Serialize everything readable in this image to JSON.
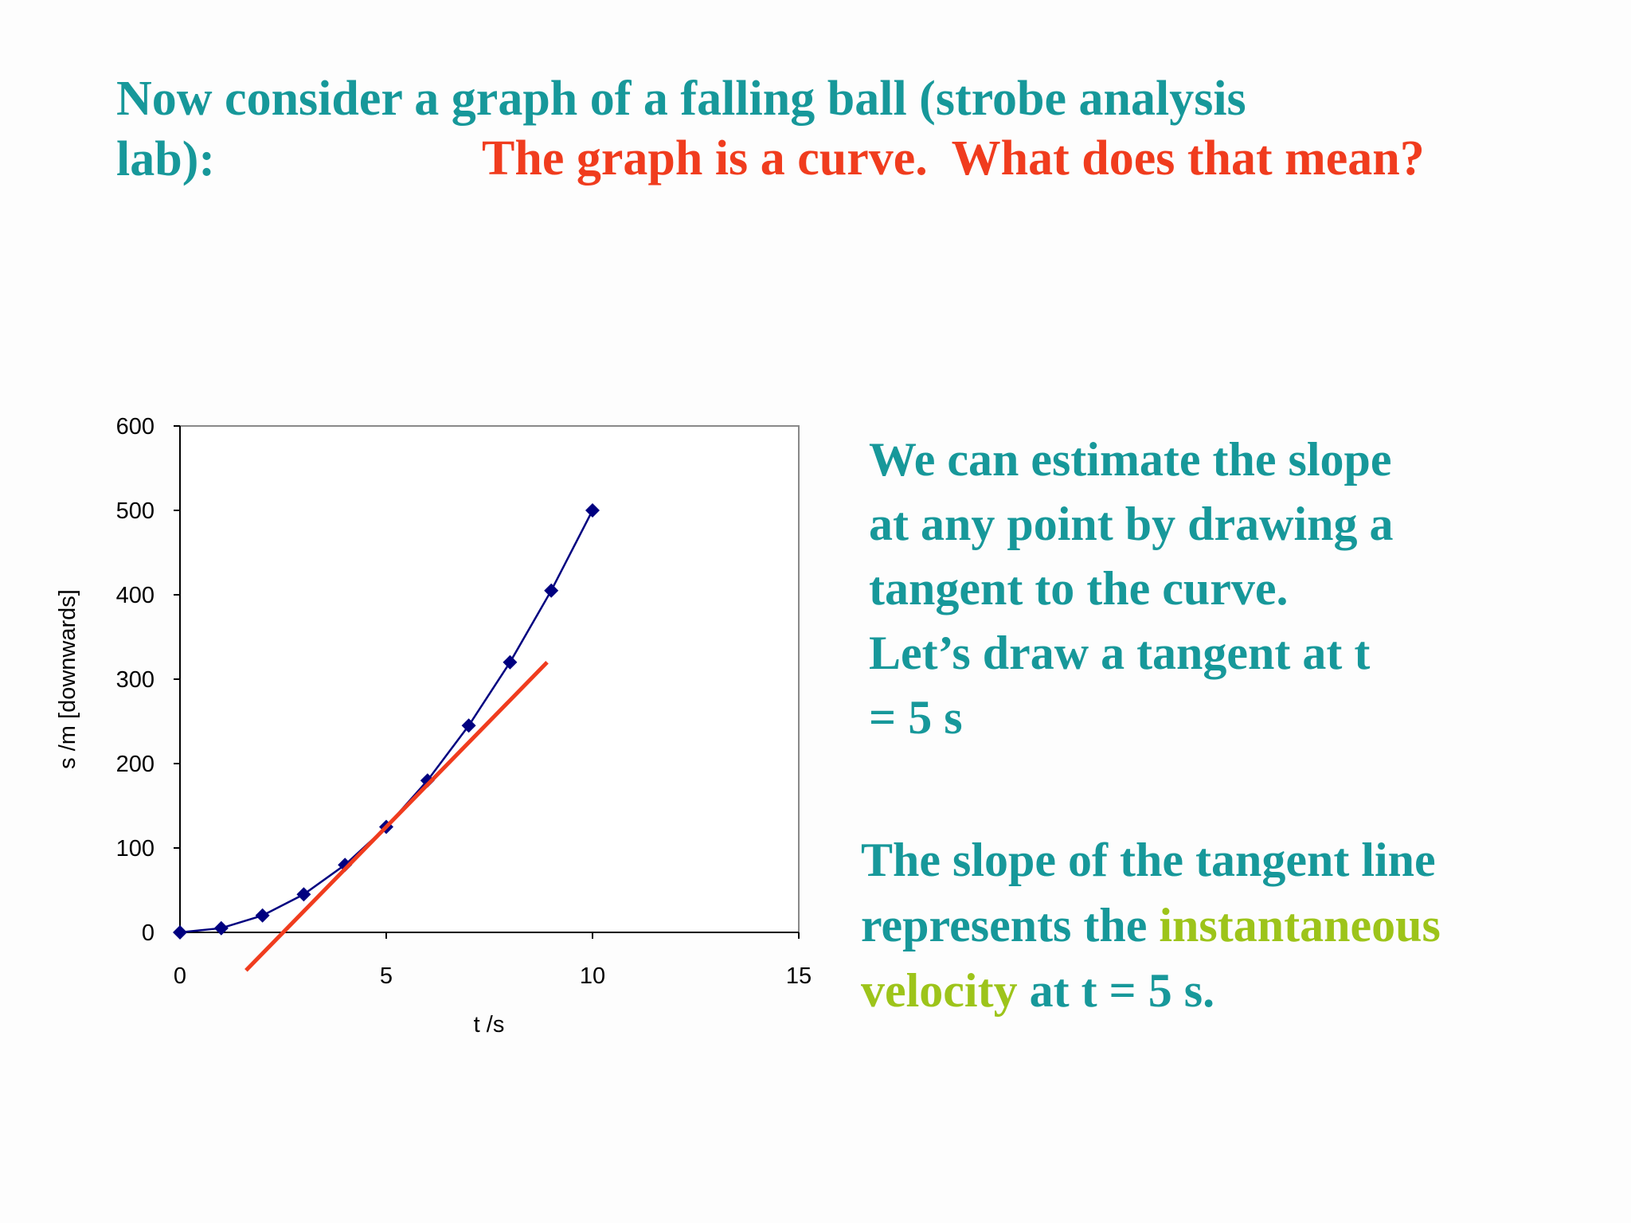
{
  "slide_title": {
    "lines": [
      "Now consider a graph of a falling ball (strobe analysis",
      "lab):"
    ],
    "color": "#17989a"
  },
  "question": {
    "text": "The graph is a curve.  What does that mean?",
    "color": "#f03c1e"
  },
  "explanation": {
    "lines": [
      "We can estimate the slope",
      "at any point by drawing a",
      "tangent to the curve.",
      "Let’s draw a tangent at t",
      "= 5 s"
    ],
    "color": "#17989a"
  },
  "conclusion": {
    "lines": [
      [
        {
          "text": "The slope of the tangent line",
          "color": "#17989a"
        }
      ],
      [
        {
          "text": "represents the ",
          "color": "#17989a"
        },
        {
          "text": "instantaneous",
          "color": "#9dc41a"
        }
      ],
      [
        {
          "text": "velocity",
          "color": "#9dc41a"
        },
        {
          "text": " at t = 5 s.",
          "color": "#17989a"
        }
      ]
    ]
  },
  "chart_data": {
    "type": "line",
    "x_label": "t /s",
    "y_label": "s /m [downwards]",
    "x": [
      0,
      1,
      2,
      3,
      4,
      5,
      6,
      7,
      8,
      9,
      10
    ],
    "series": [
      {
        "color": "#000080",
        "marker": "diamond",
        "values": [
          0,
          5,
          20,
          45,
          80,
          125,
          180,
          245,
          320,
          405,
          500
        ]
      }
    ],
    "xlim": [
      0,
      15
    ],
    "xticks": [
      0,
      5,
      10,
      15
    ],
    "ylim": [
      0,
      600
    ],
    "yticks": [
      0,
      100,
      200,
      300,
      400,
      500,
      600
    ],
    "grid": false,
    "tangent_line": {
      "x": [
        1.6,
        8.9
      ],
      "y": [
        -45,
        320
      ],
      "color": "#f03c1e"
    }
  }
}
